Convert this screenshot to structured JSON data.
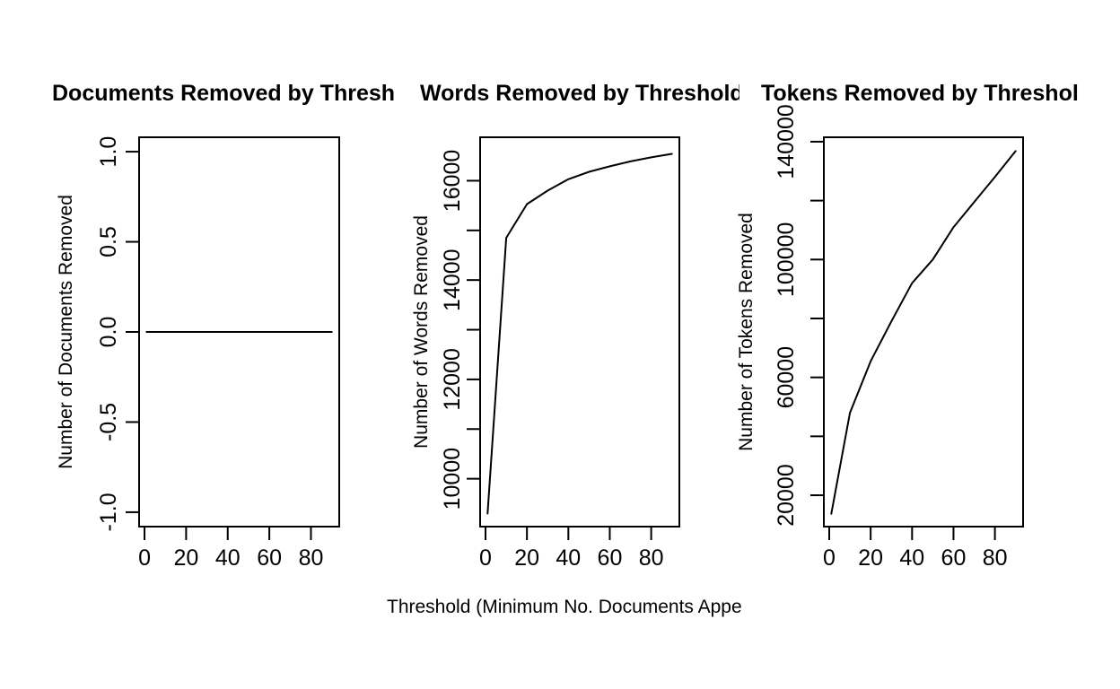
{
  "figure": {
    "background": "#ffffff",
    "foreground": "#000000",
    "xlabel": "Threshold (Minimum No. Documents Appe"
  },
  "chart_data": [
    {
      "type": "line",
      "title": "Documents Removed by Thresh",
      "ylabel": "Number of Documents Removed",
      "x": [
        1,
        10,
        20,
        30,
        40,
        50,
        60,
        70,
        80,
        90
      ],
      "y": [
        0,
        0,
        0,
        0,
        0,
        0,
        0,
        0,
        0,
        0
      ],
      "xlim": [
        -2.6,
        93.6
      ],
      "ylim": [
        -1.08,
        1.08
      ],
      "xticks": [
        0,
        20,
        40,
        60,
        80
      ],
      "xtick_labels": [
        "0",
        "20",
        "40",
        "60",
        "80"
      ],
      "yticks": [
        -1.0,
        -0.5,
        0.0,
        0.5,
        1.0
      ],
      "ytick_labels": [
        "-1.0",
        "-0.5",
        "0.0",
        "0.5",
        "1.0"
      ],
      "grid": false,
      "legend": null
    },
    {
      "type": "line",
      "title": "Words Removed by Threshold",
      "ylabel": "Number of Words Removed",
      "x": [
        1,
        10,
        20,
        30,
        40,
        50,
        60,
        70,
        80,
        90
      ],
      "y": [
        9300,
        14850,
        15530,
        15800,
        16030,
        16180,
        16290,
        16390,
        16470,
        16540
      ],
      "xlim": [
        -2.6,
        93.6
      ],
      "ylim": [
        9036,
        16875
      ],
      "xticks": [
        0,
        20,
        40,
        60,
        80
      ],
      "xtick_labels": [
        "0",
        "20",
        "40",
        "60",
        "80"
      ],
      "yticks": [
        10000,
        11000,
        12000,
        13000,
        14000,
        15000,
        16000
      ],
      "ytick_labels": [
        "10000",
        "",
        "12000",
        "",
        "14000",
        "",
        "16000"
      ],
      "grid": false,
      "legend": null
    },
    {
      "type": "line",
      "title": "Tokens Removed by Threshol",
      "ylabel": "Number of Tokens Removed",
      "x": [
        1,
        10,
        20,
        30,
        40,
        50,
        60,
        70,
        80,
        90
      ],
      "y": [
        13700,
        48000,
        65500,
        79000,
        92000,
        100000,
        111000,
        119500,
        128000,
        136800
      ],
      "xlim": [
        -2.6,
        93.6
      ],
      "ylim": [
        9350,
        141500
      ],
      "xticks": [
        0,
        20,
        40,
        60,
        80
      ],
      "xtick_labels": [
        "0",
        "20",
        "40",
        "60",
        "80"
      ],
      "yticks": [
        20000,
        40000,
        60000,
        80000,
        100000,
        120000,
        140000
      ],
      "ytick_labels": [
        "20000",
        "",
        "60000",
        "",
        "100000",
        "",
        "140000"
      ],
      "grid": false,
      "legend": null
    }
  ]
}
